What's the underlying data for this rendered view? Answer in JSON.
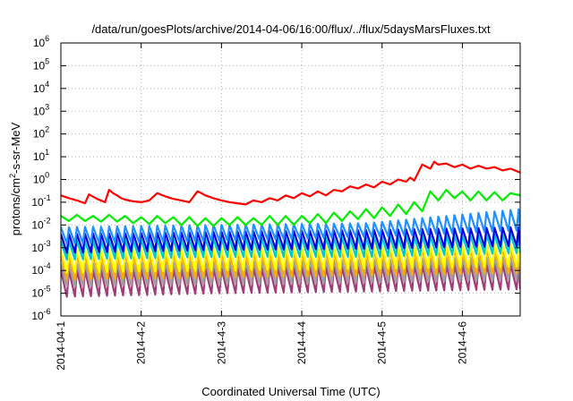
{
  "chart_data": {
    "type": "line",
    "title": "/data/run/goesPlots/archive/2014-04-06/16:00/flux/../flux/5daysMarsFluxes.txt",
    "xlabel": "Coordinated Universal Time (UTC)",
    "ylabel_prefix": "protons/cm",
    "ylabel_sup": "2",
    "ylabel_suffix": "-s-sr-MeV",
    "y_scale": "log",
    "ylim_exp": [
      -6,
      6
    ],
    "xlim": [
      0,
      5.72
    ],
    "grid": true,
    "x_ticks": [
      {
        "x": 0,
        "label": "2014-04-1"
      },
      {
        "x": 1,
        "label": "2014-4-2"
      },
      {
        "x": 2,
        "label": "2014-4-3"
      },
      {
        "x": 3,
        "label": "2014-4-4"
      },
      {
        "x": 4,
        "label": "2014-4-5"
      },
      {
        "x": 5,
        "label": "2014-4-6"
      }
    ],
    "y_ticks": [
      {
        "exp": -6,
        "base": "10",
        "sup": "-6"
      },
      {
        "exp": -5,
        "base": "10",
        "sup": "-5"
      },
      {
        "exp": -4,
        "base": "10",
        "sup": "-4"
      },
      {
        "exp": -3,
        "base": "10",
        "sup": "-3"
      },
      {
        "exp": -2,
        "base": "10",
        "sup": "-2"
      },
      {
        "exp": -1,
        "base": "10",
        "sup": "-1"
      },
      {
        "exp": 0,
        "base": "10",
        "sup": "0"
      },
      {
        "exp": 1,
        "base": "10",
        "sup": "1"
      },
      {
        "exp": 2,
        "base": "10",
        "sup": "2"
      },
      {
        "exp": 3,
        "base": "10",
        "sup": "3"
      },
      {
        "exp": 4,
        "base": "10",
        "sup": "4"
      },
      {
        "exp": 5,
        "base": "10",
        "sup": "5"
      },
      {
        "exp": 6,
        "base": "10",
        "sup": "6"
      }
    ],
    "series": [
      {
        "color": "#ff0000",
        "x": [
          0,
          0.1,
          0.2,
          0.3,
          0.35,
          0.45,
          0.55,
          0.6,
          0.65,
          0.7,
          0.75,
          0.8,
          0.9,
          1.0,
          1.1,
          1.2,
          1.3,
          1.4,
          1.5,
          1.6,
          1.7,
          1.75,
          1.8,
          1.9,
          2.0,
          2.1,
          2.2,
          2.3,
          2.4,
          2.5,
          2.6,
          2.7,
          2.8,
          2.9,
          3.0,
          3.1,
          3.2,
          3.3,
          3.4,
          3.5,
          3.6,
          3.7,
          3.8,
          3.9,
          4.0,
          4.1,
          4.2,
          4.3,
          4.35,
          4.4,
          4.5,
          4.6,
          4.65,
          4.7,
          4.8,
          4.9,
          5.0,
          5.1,
          5.2,
          5.3,
          5.4,
          5.5,
          5.6,
          5.72
        ],
        "y": [
          0.2,
          0.15,
          0.12,
          0.09,
          0.22,
          0.14,
          0.1,
          0.35,
          0.25,
          0.2,
          0.15,
          0.13,
          0.11,
          0.1,
          0.12,
          0.25,
          0.18,
          0.14,
          0.12,
          0.1,
          0.3,
          0.25,
          0.2,
          0.15,
          0.12,
          0.1,
          0.09,
          0.08,
          0.12,
          0.1,
          0.15,
          0.12,
          0.2,
          0.15,
          0.25,
          0.18,
          0.3,
          0.2,
          0.35,
          0.3,
          0.5,
          0.4,
          0.6,
          0.45,
          0.8,
          0.6,
          1.0,
          0.8,
          1.2,
          0.9,
          4.5,
          3.0,
          6.0,
          4.5,
          5.0,
          3.5,
          4.5,
          3.0,
          4.0,
          3.0,
          3.5,
          2.5,
          3.0,
          2.0
        ]
      },
      {
        "color": "#00ee00",
        "x": [
          0,
          0.1,
          0.2,
          0.3,
          0.4,
          0.5,
          0.6,
          0.7,
          0.8,
          0.9,
          1.0,
          1.1,
          1.2,
          1.3,
          1.4,
          1.5,
          1.6,
          1.7,
          1.8,
          1.9,
          2.0,
          2.1,
          2.2,
          2.3,
          2.4,
          2.5,
          2.6,
          2.7,
          2.8,
          2.9,
          3.0,
          3.1,
          3.2,
          3.3,
          3.4,
          3.5,
          3.6,
          3.7,
          3.8,
          3.9,
          4.0,
          4.1,
          4.2,
          4.3,
          4.4,
          4.5,
          4.6,
          4.7,
          4.8,
          4.9,
          5.0,
          5.1,
          5.2,
          5.3,
          5.4,
          5.5,
          5.6,
          5.72
        ],
        "y": [
          0.025,
          0.015,
          0.028,
          0.015,
          0.025,
          0.014,
          0.028,
          0.014,
          0.025,
          0.012,
          0.022,
          0.011,
          0.025,
          0.012,
          0.022,
          0.01,
          0.022,
          0.009,
          0.02,
          0.009,
          0.02,
          0.01,
          0.022,
          0.01,
          0.02,
          0.01,
          0.025,
          0.01,
          0.025,
          0.01,
          0.025,
          0.012,
          0.03,
          0.012,
          0.035,
          0.015,
          0.04,
          0.018,
          0.05,
          0.02,
          0.06,
          0.025,
          0.08,
          0.03,
          0.1,
          0.04,
          0.3,
          0.12,
          0.35,
          0.15,
          0.3,
          0.12,
          0.3,
          0.12,
          0.28,
          0.12,
          0.25,
          0.2
        ]
      }
    ],
    "sawtooth_series": [
      {
        "color": "#1e90ff",
        "top": [
          0.008,
          0.01,
          0.012,
          0.05
        ],
        "bottom": [
          0.0015,
          0.002,
          0.003,
          0.006
        ]
      },
      {
        "color": "#0000dd",
        "top": [
          0.004,
          0.005,
          0.006,
          0.008
        ],
        "bottom": [
          0.0006,
          0.0008,
          0.0009,
          0.0012
        ]
      },
      {
        "color": "#00c8c8",
        "top": [
          0.002,
          0.0025,
          0.003,
          0.004
        ],
        "bottom": [
          0.0003,
          0.0004,
          0.0004,
          0.0006
        ]
      },
      {
        "color": "#ffff00",
        "top": [
          0.0008,
          0.001,
          0.0012,
          0.0015
        ],
        "bottom": [
          8e-05,
          0.0001,
          0.00012,
          0.00015
        ]
      },
      {
        "color": "#ffaa00",
        "top": [
          0.0005,
          0.0006,
          0.0008,
          0.001
        ],
        "bottom": [
          4e-05,
          5e-05,
          6e-05,
          8e-05
        ]
      },
      {
        "color": "#a0a0a0",
        "top": [
          0.0002,
          0.00025,
          0.0003,
          0.0004
        ],
        "bottom": [
          2e-05,
          2.5e-05,
          3e-05,
          4e-05
        ]
      },
      {
        "color": "#a03c78",
        "top": [
          0.0001,
          0.00012,
          0.00015,
          0.0002
        ],
        "bottom": [
          7e-06,
          1e-05,
          1.2e-05,
          1.5e-05
        ]
      }
    ]
  }
}
